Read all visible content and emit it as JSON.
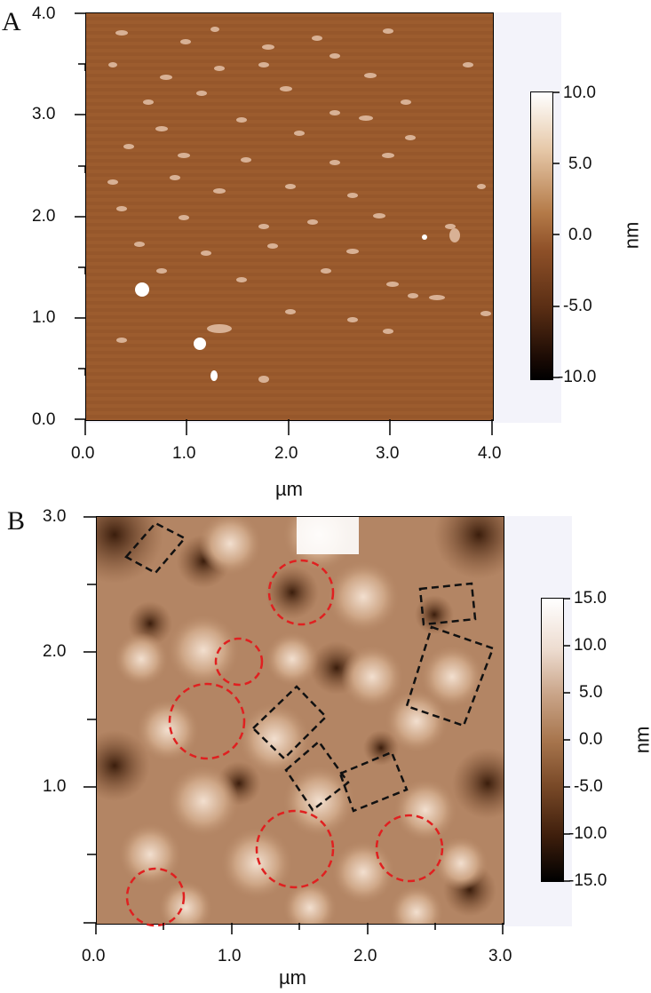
{
  "panel_a": {
    "label": "A",
    "x_ticks": [
      "0.0",
      "1.0",
      "2.0",
      "3.0",
      "4.0"
    ],
    "y_ticks": [
      "0.0",
      "1.0",
      "2.0",
      "3.0",
      "4.0"
    ],
    "x_unit": "µm",
    "colorbar": {
      "ticks": [
        "10.0",
        "5.0",
        "0.0",
        "-5.0",
        "-10.0"
      ],
      "unit": "nm"
    },
    "colors": {
      "surface": "#9a5a2c",
      "high": "#ffffff",
      "low": "#000000"
    }
  },
  "panel_b": {
    "label": "B",
    "x_ticks": [
      "0.0",
      "1.0",
      "2.0",
      "3.0"
    ],
    "y_ticks": [
      "1.0",
      "2.0",
      "3.0"
    ],
    "x_unit": "µm",
    "colorbar": {
      "ticks": [
        "15.0",
        "10.0",
        "5.0",
        "0.0",
        "-5.0",
        "-10.0",
        "-15.0"
      ],
      "unit": "nm"
    },
    "colors": {
      "surface": "#b98c6a",
      "high": "#ffffff",
      "low": "#000000",
      "circle_markers": "#e02020",
      "box_markers": "#111111"
    }
  }
}
